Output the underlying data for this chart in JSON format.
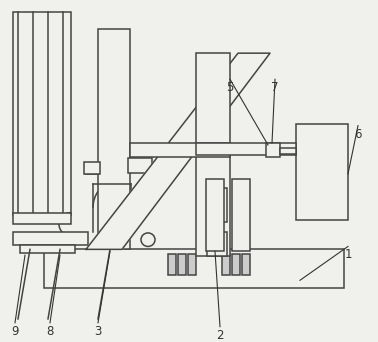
{
  "bg_color": "#f0f0ec",
  "line_color": "#444444",
  "lw": 1.1,
  "fig_w": 3.78,
  "fig_h": 3.42,
  "dpi": 100
}
